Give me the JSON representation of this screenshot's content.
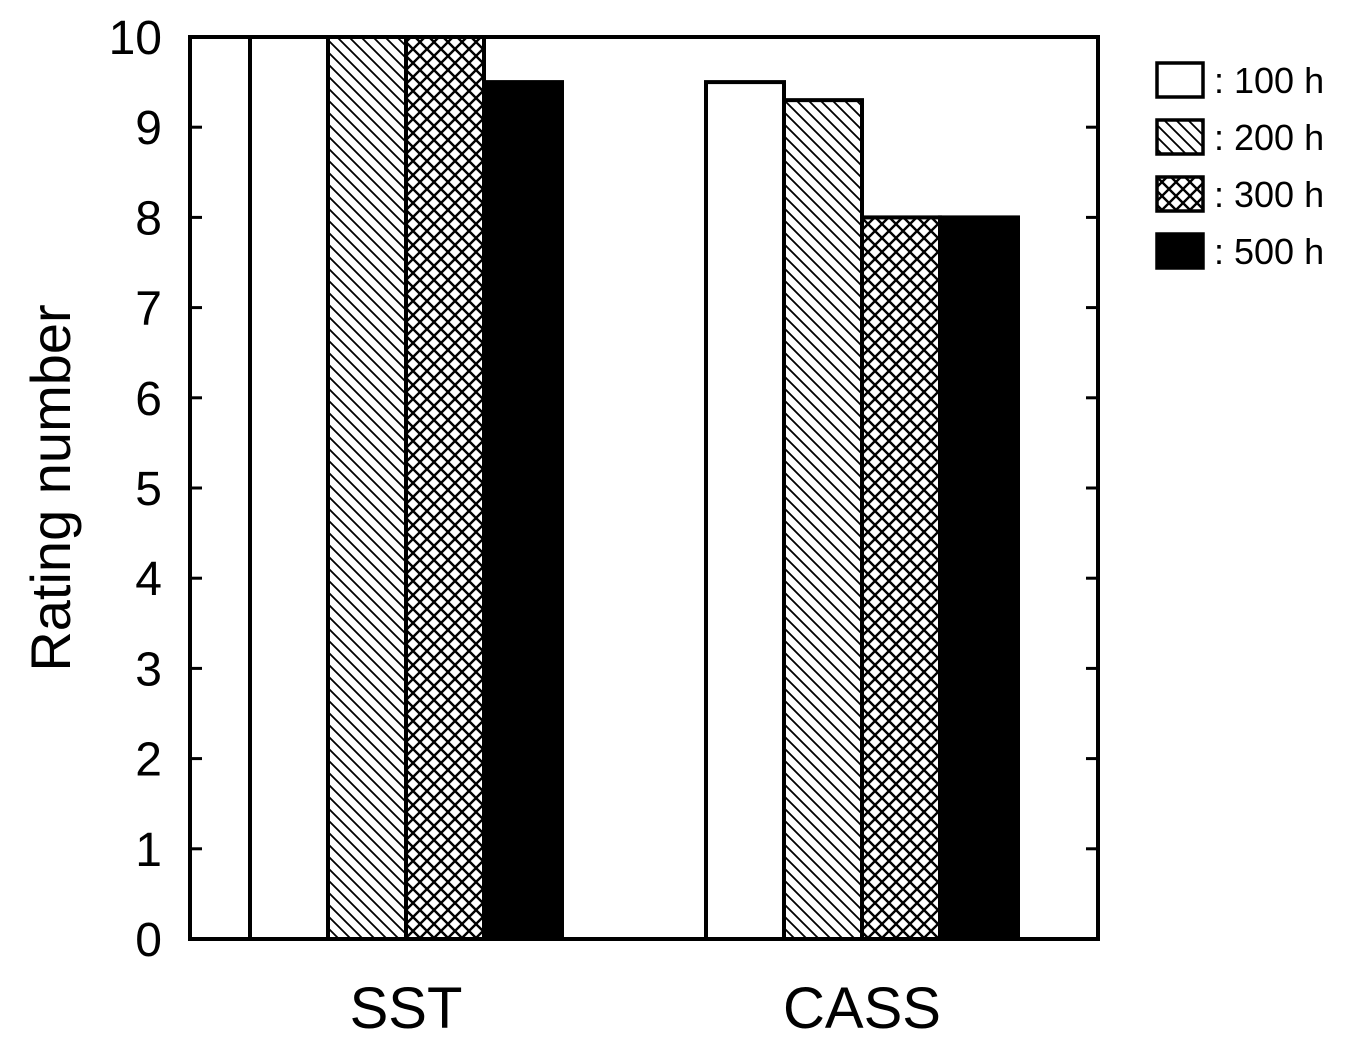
{
  "chart_data": {
    "type": "bar",
    "categories": [
      "SST",
      "CASS"
    ],
    "series": [
      {
        "name": ": 100 h",
        "values": [
          10,
          9.5
        ],
        "pattern": "white"
      },
      {
        "name": ": 200 h",
        "values": [
          10,
          9.3
        ],
        "pattern": "diagonal"
      },
      {
        "name": ": 300 h",
        "values": [
          10,
          8.0
        ],
        "pattern": "crosshatch"
      },
      {
        "name": ": 500 h",
        "values": [
          9.5,
          8.0
        ],
        "pattern": "black"
      }
    ],
    "title": "",
    "xlabel": "",
    "ylabel": "Rating number",
    "ylim": [
      0,
      10
    ],
    "yticks": [
      "0",
      "1",
      "2",
      "3",
      "4",
      "5",
      "6",
      "7",
      "8",
      "9",
      "10"
    ],
    "grid": false,
    "legend_position": "right"
  }
}
